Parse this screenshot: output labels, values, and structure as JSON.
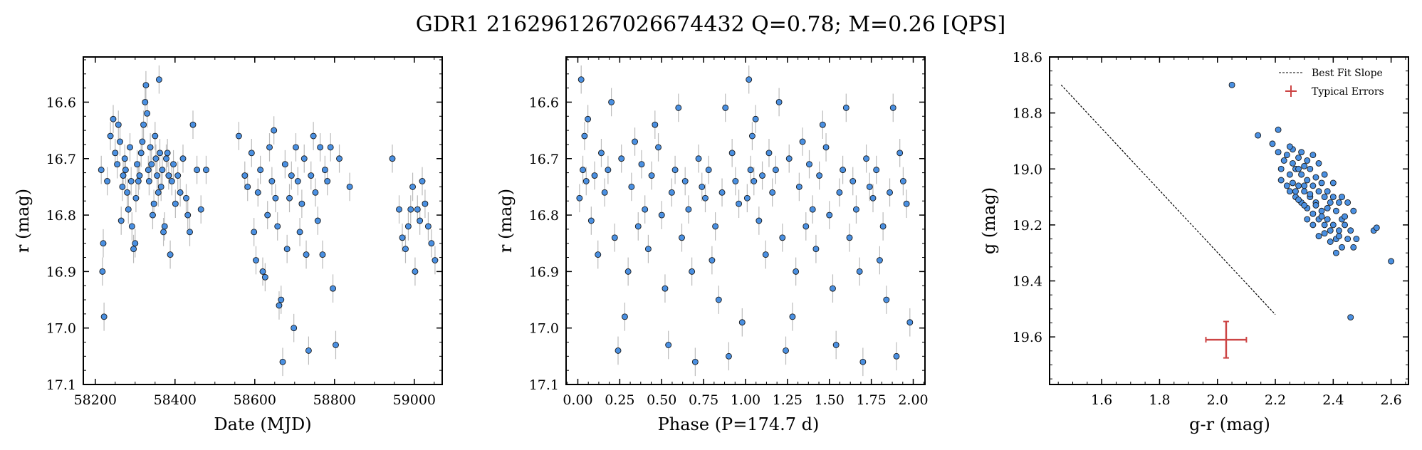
{
  "figure": {
    "title": "GDR1 2162961267026674432  Q=0.78; M=0.26 [QPS]"
  },
  "chart_data": [
    {
      "type": "scatter",
      "panel": "left",
      "xlabel": "Date (MJD)",
      "ylabel": "r (mag)",
      "xlim": [
        58170,
        59070
      ],
      "ylim": [
        17.1,
        16.52
      ],
      "y_inverted": true,
      "xticks": [
        58200,
        58400,
        58600,
        58800,
        59000
      ],
      "yticks": [
        16.6,
        16.7,
        16.8,
        16.9,
        17.0,
        17.1
      ],
      "xtick_labels": [
        "58200",
        "58400",
        "58600",
        "58800",
        "59000"
      ],
      "ytick_labels": [
        "16.6",
        "16.7",
        "16.8",
        "16.9",
        "17.0",
        "17.1"
      ],
      "marker_color": "#4a90e2",
      "error_color": "#bbbbbb",
      "grid": false,
      "series": [
        {
          "x": [
            58215,
            58218,
            58220,
            58222,
            58230,
            58238,
            58245,
            58250,
            58255,
            58258,
            58262,
            58265,
            58268,
            58270,
            58274,
            58276,
            58280,
            58283,
            58287,
            58290,
            58292,
            58296,
            58300,
            58302,
            58305,
            58308,
            58311,
            58315,
            58318,
            58321,
            58325,
            58327,
            58330,
            58333,
            58335,
            58338,
            58341,
            58344,
            58347,
            58350,
            58352,
            58355,
            58358,
            58360,
            58362,
            58365,
            58368,
            58371,
            58374,
            58378,
            58381,
            58384,
            58388,
            58392,
            58396,
            58401,
            58407,
            58413,
            58420,
            58428,
            58432,
            58437,
            58445,
            58455,
            58465,
            58478,
            58560,
            58575,
            58582,
            58592,
            58598,
            58603,
            58608,
            58614,
            58620,
            58626,
            58632,
            58637,
            58643,
            58648,
            58652,
            58657,
            58661,
            58666,
            58670,
            58676,
            58681,
            58687,
            58692,
            58698,
            58703,
            58708,
            58713,
            58718,
            58724,
            58729,
            58735,
            58741,
            58747,
            58752,
            58758,
            58764,
            58770,
            58776,
            58782,
            58790,
            58796,
            58803,
            58812,
            58838,
            58945,
            58962,
            58970,
            58978,
            58985,
            58991,
            58996,
            59002,
            59008,
            59014,
            59020,
            59027,
            59035,
            59043,
            59052
          ],
          "y": [
            16.72,
            16.9,
            16.85,
            16.98,
            16.74,
            16.66,
            16.63,
            16.69,
            16.71,
            16.64,
            16.67,
            16.81,
            16.75,
            16.73,
            16.7,
            16.72,
            16.76,
            16.79,
            16.68,
            16.74,
            16.82,
            16.86,
            16.85,
            16.77,
            16.71,
            16.74,
            16.73,
            16.69,
            16.67,
            16.64,
            16.6,
            16.57,
            16.62,
            16.72,
            16.74,
            16.68,
            16.71,
            16.8,
            16.78,
            16.66,
            16.7,
            16.73,
            16.76,
            16.56,
            16.69,
            16.75,
            16.72,
            16.83,
            16.82,
            16.7,
            16.69,
            16.73,
            16.87,
            16.74,
            16.71,
            16.78,
            16.73,
            16.76,
            16.7,
            16.77,
            16.8,
            16.83,
            16.64,
            16.72,
            16.79,
            16.72,
            16.66,
            16.73,
            16.75,
            16.69,
            16.83,
            16.88,
            16.76,
            16.72,
            16.9,
            16.91,
            16.8,
            16.68,
            16.74,
            16.65,
            16.77,
            16.82,
            16.96,
            16.95,
            17.06,
            16.71,
            16.86,
            16.77,
            16.73,
            17.0,
            16.68,
            16.74,
            16.83,
            16.78,
            16.7,
            16.87,
            17.04,
            16.73,
            16.66,
            16.76,
            16.81,
            16.68,
            16.87,
            16.72,
            16.74,
            16.68,
            16.93,
            17.03,
            16.7,
            16.75,
            16.7,
            16.79,
            16.84,
            16.86,
            16.82,
            16.79,
            16.75,
            16.9,
            16.79,
            16.81,
            16.74,
            16.78,
            16.82,
            16.85,
            16.88
          ],
          "error": 0.025
        }
      ]
    },
    {
      "type": "scatter",
      "panel": "middle",
      "xlabel": "Phase (P=174.7 d)",
      "ylabel": "r (mag)",
      "xlim": [
        -0.07,
        2.07
      ],
      "ylim": [
        17.1,
        16.52
      ],
      "y_inverted": true,
      "xticks": [
        0.0,
        0.25,
        0.5,
        0.75,
        1.0,
        1.25,
        1.5,
        1.75,
        2.0
      ],
      "yticks": [
        16.6,
        16.7,
        16.8,
        16.9,
        17.0,
        17.1
      ],
      "xtick_labels": [
        "0.00",
        "0.25",
        "0.50",
        "0.75",
        "1.00",
        "1.25",
        "1.50",
        "1.75",
        "2.00"
      ],
      "ytick_labels": [
        "16.6",
        "16.7",
        "16.8",
        "16.9",
        "17.0",
        "17.1"
      ],
      "marker_color": "#4a90e2",
      "error_color": "#bbbbbb",
      "grid": false,
      "series": [
        {
          "x": [
            0.01,
            0.02,
            0.03,
            0.04,
            0.05,
            0.06,
            0.08,
            0.1,
            0.12,
            0.14,
            0.16,
            0.18,
            0.2,
            0.22,
            0.24,
            0.26,
            0.28,
            0.3,
            0.32,
            0.34,
            0.36,
            0.38,
            0.4,
            0.42,
            0.44,
            0.46,
            0.48,
            0.5,
            0.52,
            0.54,
            0.56,
            0.58,
            0.6,
            0.62,
            0.64,
            0.66,
            0.68,
            0.7,
            0.72,
            0.74,
            0.76,
            0.78,
            0.8,
            0.82,
            0.84,
            0.86,
            0.88,
            0.9,
            0.92,
            0.94,
            0.96,
            0.98,
            1.01,
            1.02,
            1.03,
            1.04,
            1.05,
            1.06,
            1.08,
            1.1,
            1.12,
            1.14,
            1.16,
            1.18,
            1.2,
            1.22,
            1.24,
            1.26,
            1.28,
            1.3,
            1.32,
            1.34,
            1.36,
            1.38,
            1.4,
            1.42,
            1.44,
            1.46,
            1.48,
            1.5,
            1.52,
            1.54,
            1.56,
            1.58,
            1.6,
            1.62,
            1.64,
            1.66,
            1.68,
            1.7,
            1.72,
            1.74,
            1.76,
            1.78,
            1.8,
            1.82,
            1.84,
            1.86,
            1.88,
            1.9,
            1.92,
            1.94,
            1.96,
            1.98
          ],
          "y": [
            16.77,
            16.56,
            16.72,
            16.66,
            16.74,
            16.63,
            16.81,
            16.73,
            16.87,
            16.69,
            16.76,
            16.72,
            16.6,
            16.84,
            17.04,
            16.7,
            16.98,
            16.9,
            16.75,
            16.67,
            16.82,
            16.71,
            16.79,
            16.86,
            16.73,
            16.64,
            16.68,
            16.8,
            16.93,
            17.03,
            16.76,
            16.72,
            16.61,
            16.84,
            16.74,
            16.79,
            16.9,
            17.06,
            16.7,
            16.75,
            16.77,
            16.72,
            16.88,
            16.82,
            16.95,
            16.76,
            16.61,
            17.05,
            16.69,
            16.74,
            16.78,
            16.99,
            16.77,
            16.56,
            16.72,
            16.66,
            16.74,
            16.63,
            16.81,
            16.73,
            16.87,
            16.69,
            16.76,
            16.72,
            16.6,
            16.84,
            17.04,
            16.7,
            16.98,
            16.9,
            16.75,
            16.67,
            16.82,
            16.71,
            16.79,
            16.86,
            16.73,
            16.64,
            16.68,
            16.8,
            16.93,
            17.03,
            16.76,
            16.72,
            16.61,
            16.84,
            16.74,
            16.79,
            16.9,
            17.06,
            16.7,
            16.75,
            16.77,
            16.72,
            16.88,
            16.82,
            16.95,
            16.76,
            16.61,
            17.05,
            16.69,
            16.74,
            16.78,
            16.99
          ],
          "error": 0.025
        }
      ]
    },
    {
      "type": "scatter",
      "panel": "right",
      "xlabel": "g-r (mag)",
      "ylabel": "g (mag)",
      "xlim": [
        1.42,
        2.66
      ],
      "ylim": [
        19.77,
        18.6
      ],
      "y_inverted": true,
      "xticks": [
        1.6,
        1.8,
        2.0,
        2.2,
        2.4,
        2.6
      ],
      "yticks": [
        18.6,
        18.8,
        19.0,
        19.2,
        19.4,
        19.6
      ],
      "xtick_labels": [
        "1.6",
        "1.8",
        "2.0",
        "2.2",
        "2.4",
        "2.6"
      ],
      "ytick_labels": [
        "18.6",
        "18.8",
        "19.0",
        "19.2",
        "19.4",
        "19.6"
      ],
      "marker_color": "#4a90e2",
      "grid": false,
      "legend": {
        "position": "top-right",
        "items": [
          "Best Fit Slope",
          "Typical Errors"
        ]
      },
      "best_fit_line": {
        "x": [
          1.46,
          2.2
        ],
        "y": [
          18.7,
          19.52
        ]
      },
      "typical_error": {
        "x": 2.03,
        "y": 19.61,
        "xerr": 0.07,
        "yerr": 0.065,
        "color": "#cc4444"
      },
      "series": [
        {
          "x": [
            2.05,
            2.14,
            2.19,
            2.21,
            2.22,
            2.23,
            2.24,
            2.25,
            2.25,
            2.26,
            2.26,
            2.27,
            2.27,
            2.28,
            2.28,
            2.29,
            2.29,
            2.3,
            2.3,
            2.31,
            2.31,
            2.32,
            2.32,
            2.33,
            2.33,
            2.34,
            2.34,
            2.35,
            2.35,
            2.36,
            2.36,
            2.37,
            2.37,
            2.38,
            2.38,
            2.39,
            2.39,
            2.4,
            2.4,
            2.41,
            2.41,
            2.42,
            2.42,
            2.43,
            2.43,
            2.44,
            2.45,
            2.46,
            2.47,
            2.48,
            2.29,
            2.31,
            2.33,
            2.35,
            2.37,
            2.4,
            2.43,
            2.45,
            2.54,
            2.55,
            2.6,
            2.46,
            2.26,
            2.28,
            2.3,
            2.32,
            2.34,
            2.36,
            2.38,
            2.22,
            2.24,
            2.27,
            2.21,
            2.25,
            2.39,
            2.41,
            2.44,
            2.37,
            2.35,
            2.33,
            2.31,
            2.3,
            2.28,
            2.42,
            2.47
          ],
          "y": [
            18.7,
            18.88,
            18.91,
            18.86,
            19.0,
            18.97,
            18.95,
            19.02,
            19.08,
            18.98,
            19.05,
            19.0,
            19.1,
            18.96,
            19.06,
            19.02,
            19.12,
            18.99,
            19.08,
            19.04,
            19.14,
            19.0,
            19.1,
            19.06,
            19.16,
            19.03,
            19.12,
            19.08,
            19.18,
            19.05,
            19.15,
            19.1,
            19.2,
            19.08,
            19.18,
            19.12,
            19.22,
            19.1,
            19.2,
            19.15,
            19.25,
            19.12,
            19.22,
            19.18,
            19.28,
            19.2,
            19.25,
            19.22,
            19.28,
            19.25,
            18.94,
            18.97,
            18.95,
            18.98,
            19.02,
            19.05,
            19.1,
            19.12,
            19.22,
            19.21,
            19.33,
            19.53,
            18.93,
            19.0,
            19.06,
            19.09,
            19.13,
            19.17,
            19.14,
            19.04,
            19.06,
            19.08,
            18.94,
            18.92,
            19.26,
            19.3,
            19.17,
            19.23,
            19.24,
            19.2,
            19.18,
            19.13,
            19.11,
            19.24,
            19.15
          ]
        }
      ]
    }
  ]
}
